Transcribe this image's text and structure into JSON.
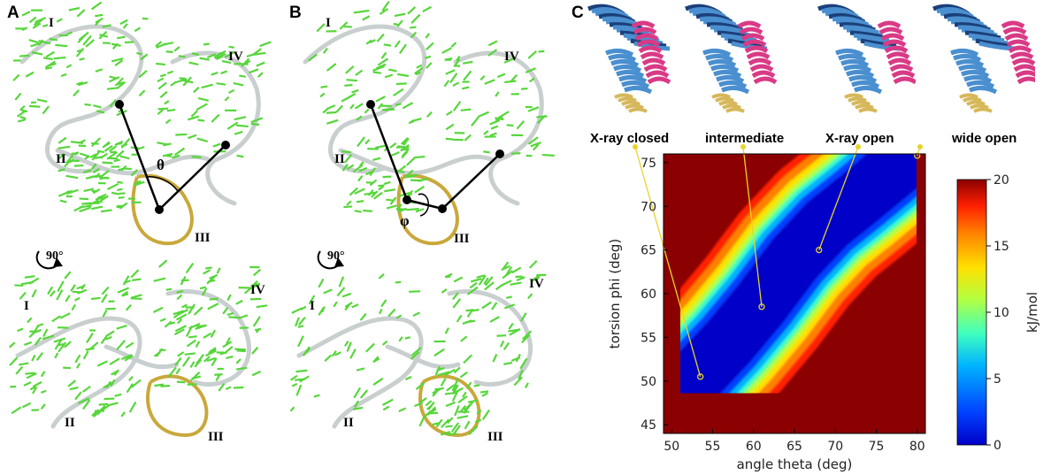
{
  "panels": {
    "A": {
      "letter": "A",
      "labels_top": [
        "I",
        "II",
        "III",
        "IV"
      ],
      "labels_bottom": [
        "I",
        "II",
        "III",
        "IV"
      ],
      "angle_symbol": "θ",
      "rotation_label": "90°"
    },
    "B": {
      "letter": "B",
      "labels_top": [
        "I",
        "II",
        "III",
        "IV"
      ],
      "labels_bottom": [
        "I",
        "II",
        "III",
        "IV"
      ],
      "angle_symbol": "φ",
      "rotation_label": "90°"
    },
    "C": {
      "letter": "C",
      "states": [
        "X-ray closed",
        "intermediate",
        "X-ray open",
        "wide open"
      ]
    }
  },
  "colors": {
    "vectors": "#56d63a",
    "backbone": "#c9cfcf",
    "domain_III": "#c9a83c",
    "domain_blue": "#4a8fcf",
    "domain_dark": "#1b3f7a",
    "domain_pink": "#d93a86",
    "domain_gold": "#d6b85a",
    "marker": "#e8d42a"
  },
  "chart_data": {
    "type": "heatmap",
    "title": "",
    "xlabel": "angle theta (deg)",
    "ylabel": "torsion phi (deg)",
    "xlim": [
      49,
      81
    ],
    "ylim": [
      44,
      76
    ],
    "xticks": [
      50,
      55,
      60,
      65,
      70,
      75,
      80
    ],
    "yticks": [
      45,
      50,
      55,
      60,
      65,
      70,
      75
    ],
    "colorbar": {
      "label": "kJ/mol",
      "range": [
        0,
        20
      ],
      "ticks": [
        0,
        5,
        10,
        15,
        20
      ],
      "colormap": [
        "#0000c8",
        "#0040ff",
        "#00b4ff",
        "#40ffc0",
        "#b4ff40",
        "#ffe000",
        "#ff8000",
        "#ff2000",
        "#8b0000"
      ]
    },
    "background_value": 20,
    "basin_centerline": [
      {
        "theta": 53.5,
        "phi": 51,
        "halfwidth": 2.6
      },
      {
        "theta": 57,
        "phi": 54.5,
        "halfwidth": 4.2
      },
      {
        "theta": 61,
        "phi": 59,
        "halfwidth": 4.6
      },
      {
        "theta": 65,
        "phi": 64,
        "halfwidth": 4.4
      },
      {
        "theta": 69,
        "phi": 68,
        "halfwidth": 3.8
      },
      {
        "theta": 73,
        "phi": 71,
        "halfwidth": 2.8
      },
      {
        "theta": 77.5,
        "phi": 74.5,
        "halfwidth": 1.4
      }
    ],
    "markers": [
      {
        "name": "X-ray closed",
        "theta": 53.5,
        "phi": 50.5
      },
      {
        "name": "intermediate",
        "theta": 61,
        "phi": 58.5
      },
      {
        "name": "X-ray open",
        "theta": 68,
        "phi": 65
      },
      {
        "name": "wide open",
        "theta": 80,
        "phi": 75.8
      }
    ]
  }
}
